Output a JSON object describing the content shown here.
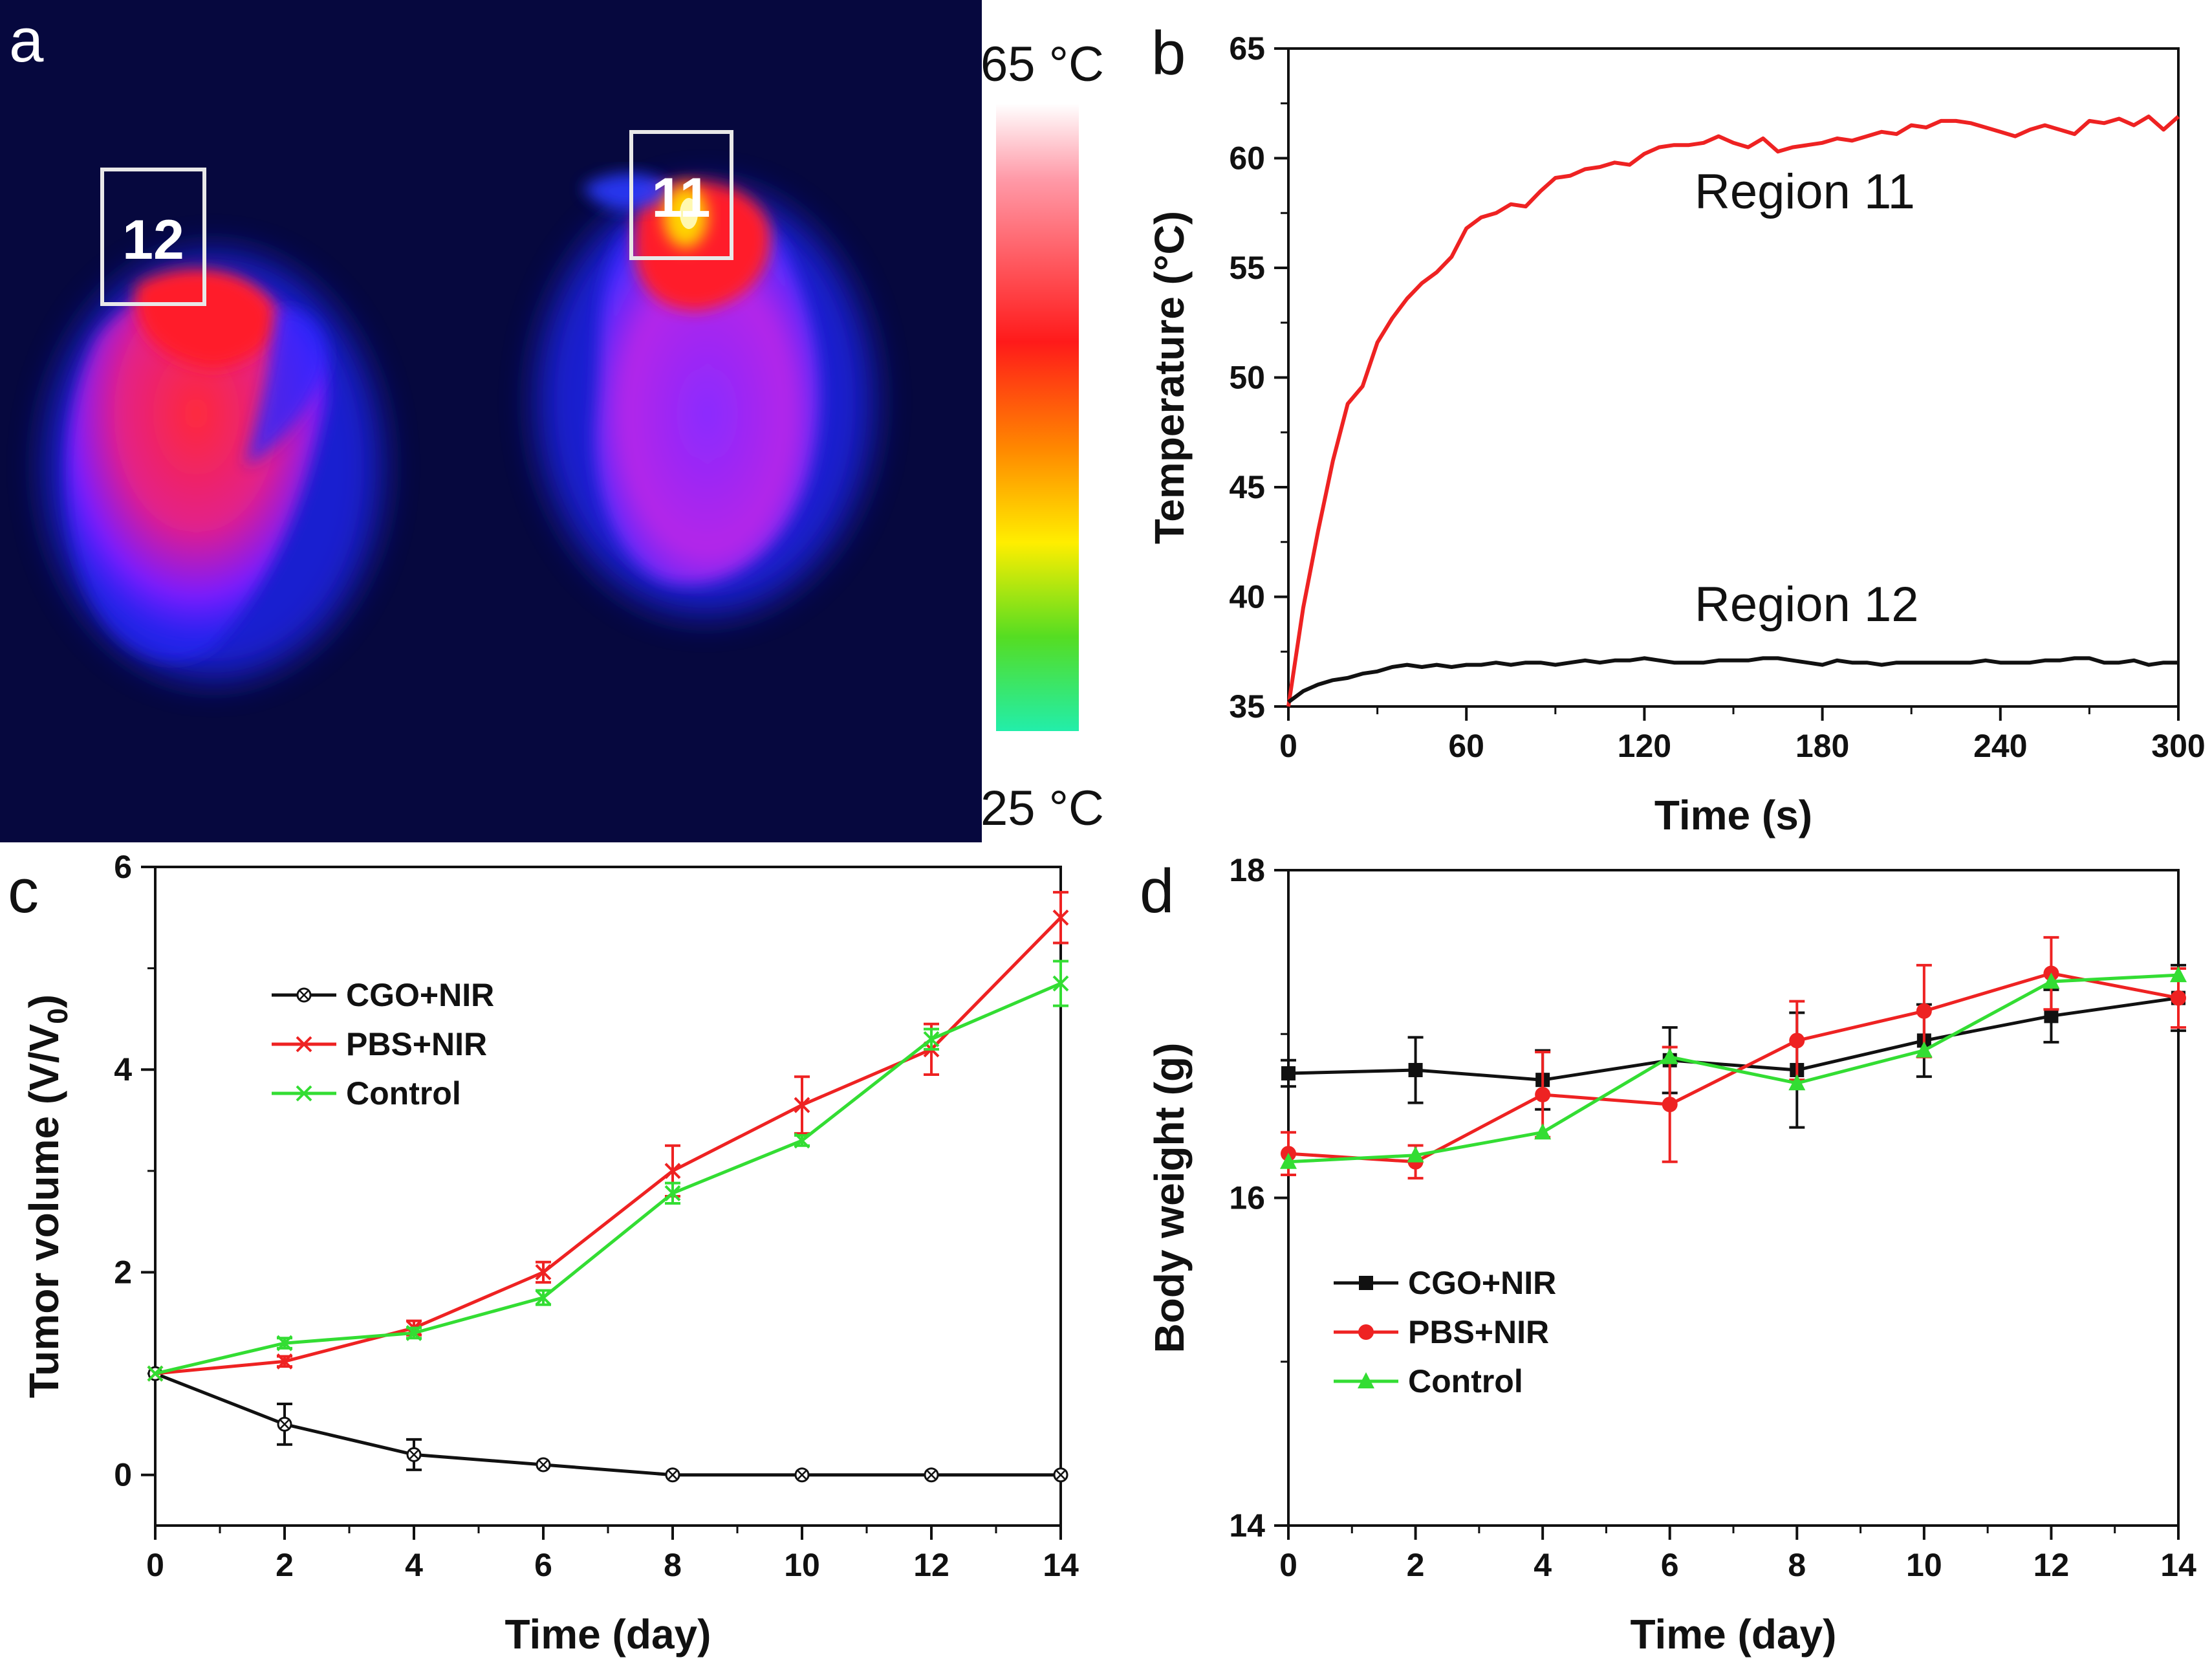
{
  "panels": {
    "a": {
      "letter": "a",
      "colorbar": {
        "max_label": "65 °C",
        "min_label": "25 °C"
      },
      "regions": [
        {
          "label": "12"
        },
        {
          "label": "11"
        }
      ]
    },
    "b": {
      "letter": "b"
    },
    "c": {
      "letter": "c"
    },
    "d": {
      "letter": "d"
    }
  },
  "chart_data": [
    {
      "id": "b",
      "type": "line",
      "xlabel": "Time (s)",
      "ylabel": "Temperature (°C)",
      "xlim": [
        0,
        300
      ],
      "ylim": [
        35,
        65
      ],
      "xticks": [
        0,
        60,
        120,
        180,
        240,
        300
      ],
      "yticks": [
        35,
        40,
        45,
        50,
        55,
        60,
        65
      ],
      "annotations": [
        "Region 11",
        "Region 12"
      ],
      "series": [
        {
          "name": "Region 11",
          "color": "#ee2222",
          "x": [
            0,
            5,
            10,
            15,
            20,
            25,
            30,
            35,
            40,
            45,
            50,
            55,
            60,
            65,
            70,
            75,
            80,
            85,
            90,
            95,
            100,
            105,
            110,
            115,
            120,
            125,
            130,
            135,
            140,
            145,
            150,
            155,
            160,
            165,
            170,
            175,
            180,
            185,
            190,
            195,
            200,
            205,
            210,
            215,
            220,
            225,
            230,
            235,
            240,
            245,
            250,
            255,
            260,
            265,
            270,
            275,
            280,
            285,
            290,
            295,
            300
          ],
          "y": [
            35.0,
            39.5,
            43.0,
            46.2,
            48.8,
            49.6,
            51.6,
            52.7,
            53.6,
            54.3,
            54.8,
            55.5,
            56.8,
            57.3,
            57.5,
            57.9,
            57.8,
            58.5,
            59.1,
            59.2,
            59.5,
            59.6,
            59.8,
            59.7,
            60.2,
            60.5,
            60.6,
            60.6,
            60.7,
            61.0,
            60.7,
            60.5,
            60.9,
            60.3,
            60.5,
            60.6,
            60.7,
            60.9,
            60.8,
            61.0,
            61.2,
            61.1,
            61.5,
            61.4,
            61.7,
            61.7,
            61.6,
            61.4,
            61.2,
            61.0,
            61.3,
            61.5,
            61.3,
            61.1,
            61.7,
            61.6,
            61.8,
            61.5,
            61.9,
            61.3,
            61.9
          ]
        },
        {
          "name": "Region 12",
          "color": "#111111",
          "x": [
            0,
            5,
            10,
            15,
            20,
            25,
            30,
            35,
            40,
            45,
            50,
            55,
            60,
            65,
            70,
            75,
            80,
            85,
            90,
            95,
            100,
            105,
            110,
            115,
            120,
            125,
            130,
            135,
            140,
            145,
            150,
            155,
            160,
            165,
            170,
            175,
            180,
            185,
            190,
            195,
            200,
            205,
            210,
            215,
            220,
            225,
            230,
            235,
            240,
            245,
            250,
            255,
            260,
            265,
            270,
            275,
            280,
            285,
            290,
            295,
            300
          ],
          "y": [
            35.2,
            35.7,
            36.0,
            36.2,
            36.3,
            36.5,
            36.6,
            36.8,
            36.9,
            36.8,
            36.9,
            36.8,
            36.9,
            36.9,
            37.0,
            36.9,
            37.0,
            37.0,
            36.9,
            37.0,
            37.1,
            37.0,
            37.1,
            37.1,
            37.2,
            37.1,
            37.0,
            37.0,
            37.0,
            37.1,
            37.1,
            37.1,
            37.2,
            37.2,
            37.1,
            37.0,
            36.9,
            37.1,
            37.0,
            37.0,
            36.9,
            37.0,
            37.0,
            37.0,
            37.0,
            37.0,
            37.0,
            37.1,
            37.0,
            37.0,
            37.0,
            37.1,
            37.1,
            37.2,
            37.2,
            37.0,
            37.0,
            37.1,
            36.9,
            37.0,
            37.0
          ]
        }
      ]
    },
    {
      "id": "c",
      "type": "line",
      "xlabel": "Time (day)",
      "ylabel": "Tumor volume (V/V",
      "ylabel_sub": "0",
      "ylabel_close": ")",
      "xlim": [
        0,
        14
      ],
      "ylim": [
        -0.5,
        6
      ],
      "xticks": [
        0,
        2,
        4,
        6,
        8,
        10,
        12,
        14
      ],
      "yticks": [
        0,
        2,
        4,
        6
      ],
      "legend": "upper-left",
      "categories": [
        0,
        2,
        4,
        6,
        8,
        10,
        12,
        14
      ],
      "series": [
        {
          "name": "CGO+NIR",
          "color": "#111111",
          "marker": "circle-x",
          "values": [
            1.0,
            0.5,
            0.2,
            0.1,
            0.0,
            0.0,
            0.0,
            0.0
          ],
          "errors": [
            0,
            0.2,
            0.15,
            0,
            0,
            0,
            0,
            0
          ]
        },
        {
          "name": "PBS+NIR",
          "color": "#ee2222",
          "marker": "x",
          "values": [
            1.0,
            1.12,
            1.45,
            2.0,
            3.0,
            3.65,
            4.2,
            5.5
          ],
          "errors": [
            0,
            0.05,
            0.07,
            0.1,
            0.25,
            0.28,
            0.25,
            0.25
          ]
        },
        {
          "name": "Control",
          "color": "#33dd33",
          "marker": "x",
          "values": [
            1.0,
            1.3,
            1.4,
            1.75,
            2.78,
            3.3,
            4.3,
            4.85
          ],
          "errors": [
            0,
            0.05,
            0.05,
            0.07,
            0.1,
            0.05,
            0.1,
            0.22
          ]
        }
      ]
    },
    {
      "id": "d",
      "type": "line",
      "xlabel": "Time (day)",
      "ylabel": "Body weight (g)",
      "xlim": [
        0,
        14
      ],
      "ylim": [
        14,
        18
      ],
      "xticks": [
        0,
        2,
        4,
        6,
        8,
        10,
        12,
        14
      ],
      "yticks": [
        14,
        16,
        18
      ],
      "legend": "lower-left",
      "categories": [
        0,
        2,
        4,
        6,
        8,
        10,
        12,
        14
      ],
      "series": [
        {
          "name": "CGO+NIR",
          "color": "#111111",
          "marker": "square",
          "values": [
            16.76,
            16.78,
            16.72,
            16.84,
            16.78,
            16.96,
            17.11,
            17.22
          ],
          "errors": [
            0.08,
            0.2,
            0.18,
            0.2,
            0.35,
            0.22,
            0.16,
            0.2
          ]
        },
        {
          "name": "PBS+NIR",
          "color": "#ee2222",
          "marker": "circle",
          "values": [
            16.27,
            16.22,
            16.63,
            16.57,
            16.96,
            17.14,
            17.37,
            17.22
          ],
          "errors": [
            0.13,
            0.1,
            0.26,
            0.35,
            0.24,
            0.28,
            0.22,
            0.18
          ]
        },
        {
          "name": "Control",
          "color": "#33dd33",
          "marker": "triangle",
          "values": [
            16.22,
            16.26,
            16.4,
            16.86,
            16.7,
            16.9,
            17.32,
            17.36
          ],
          "errors": [
            0,
            0,
            0,
            0,
            0,
            0,
            0,
            0
          ]
        }
      ]
    }
  ]
}
